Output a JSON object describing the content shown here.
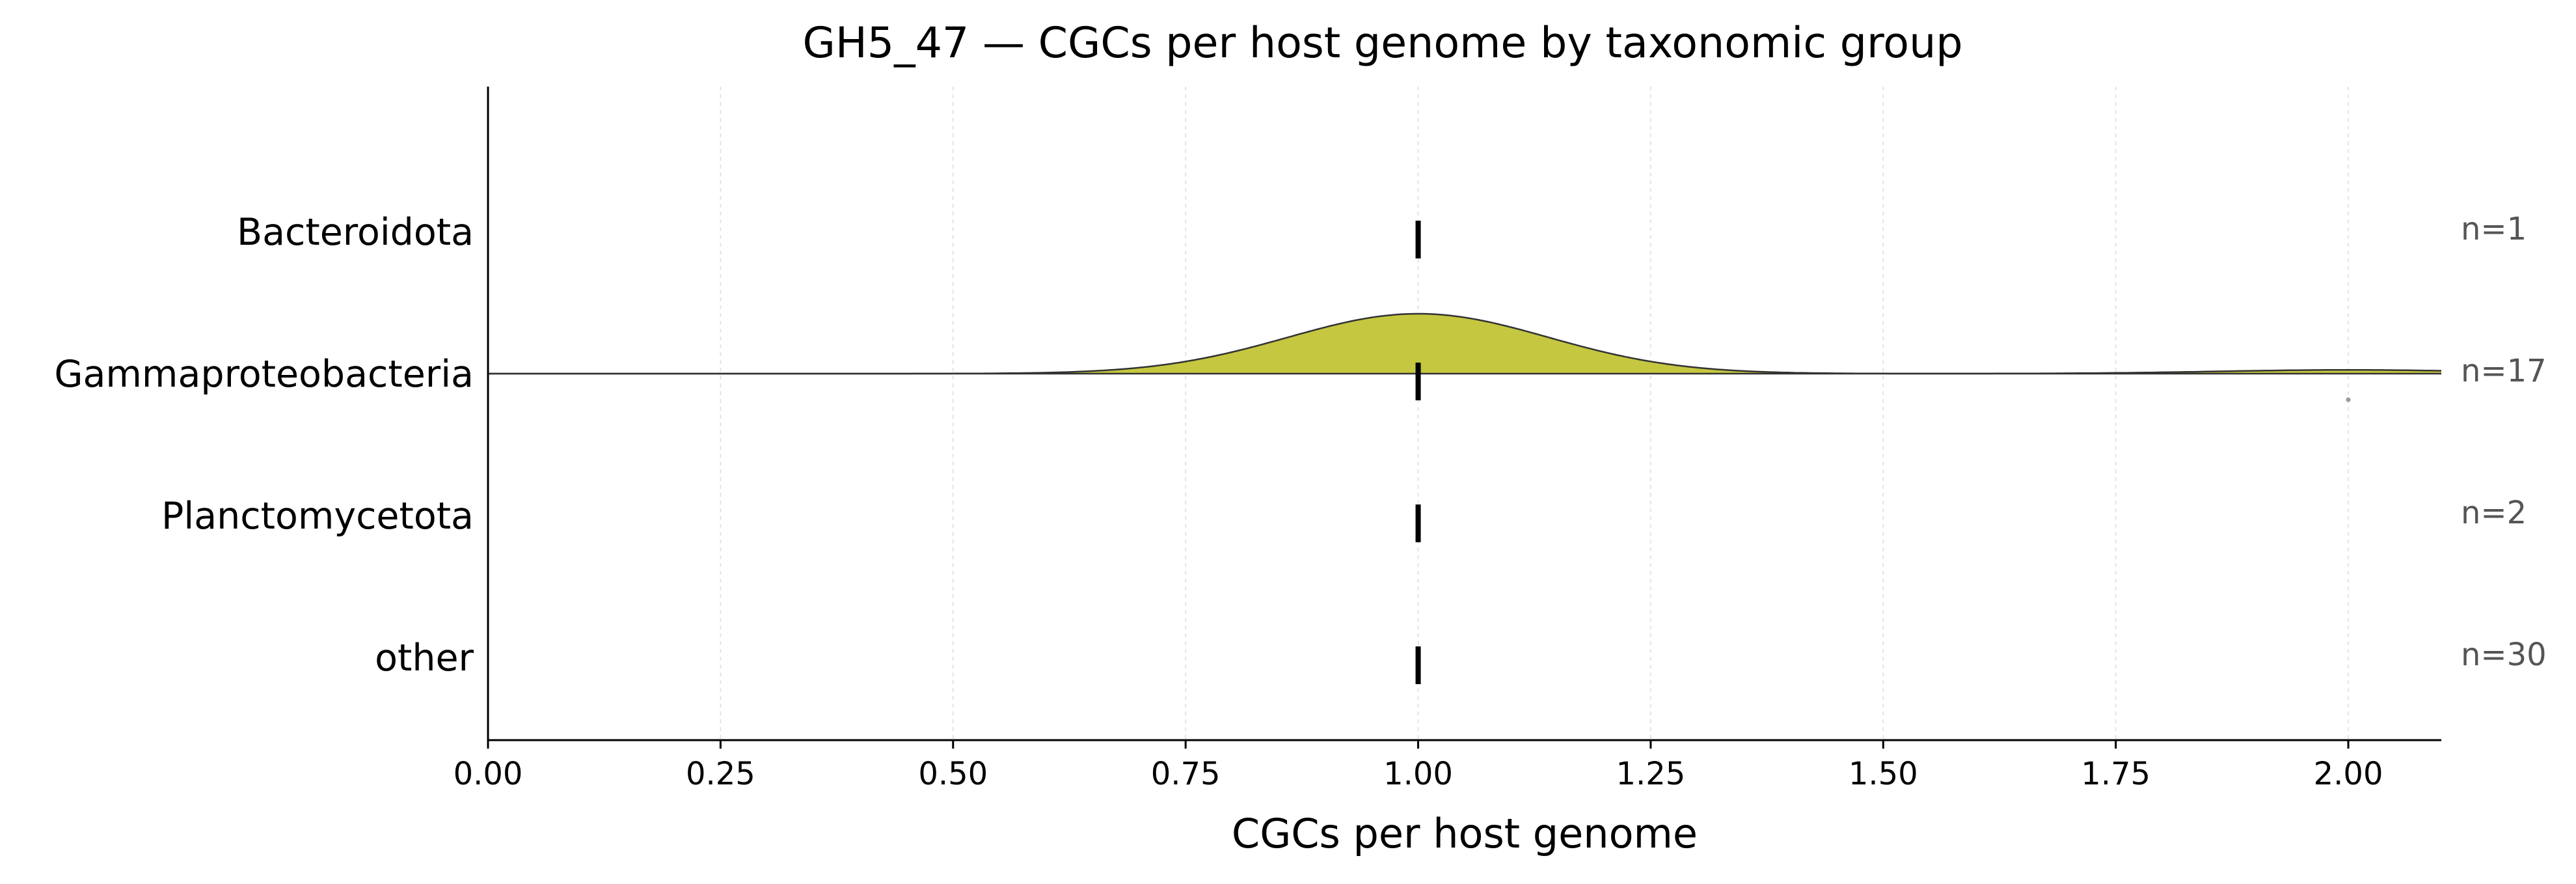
{
  "chart_data": {
    "type": "ridgeline",
    "title": "GH5_47 — CGCs per host genome by taxonomic group",
    "xlabel": "CGCs per host genome",
    "xlim": [
      0,
      2.1
    ],
    "xticks": [
      "0.00",
      "0.25",
      "0.50",
      "0.75",
      "1.00",
      "1.25",
      "1.50",
      "1.75",
      "2.00"
    ],
    "grid_x": true,
    "grid_style": "dotted",
    "fill_color": "#c5c740",
    "groups": [
      {
        "name": "Bacteroidota",
        "n_label": "n=1",
        "median": 1.0,
        "density": false
      },
      {
        "name": "Gammaproteobacteria",
        "n_label": "n=17",
        "median": 1.0,
        "density": true,
        "kde_components": [
          {
            "center": 1.0,
            "sd": 0.14,
            "weight": 16
          },
          {
            "center": 2.0,
            "sd": 0.14,
            "weight": 1
          }
        ],
        "outliers": [
          2.0
        ]
      },
      {
        "name": "Planctomycetota",
        "n_label": "n=2",
        "median": 1.0,
        "density": false
      },
      {
        "name": "other",
        "n_label": "n=30",
        "median": 1.0,
        "density": false
      }
    ]
  }
}
